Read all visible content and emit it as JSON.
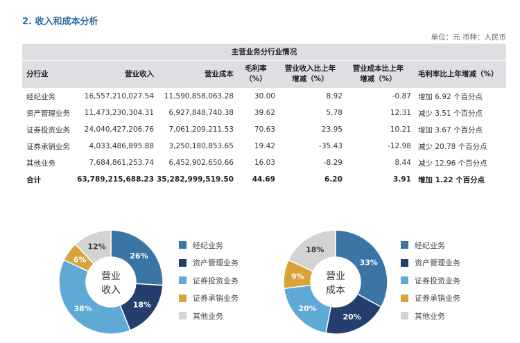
{
  "section_title": "2. 收入和成本分析",
  "unit_line": "单位：元  币种：人民币",
  "table": {
    "title": "主营业务分行业情况",
    "headers": [
      "分行业",
      "营业收入",
      "营业成本",
      "毛利率\n（%）",
      "营业收入比上年\n增减（%）",
      "营业成本比上年\n增减（%）",
      "毛利率比上年增减（%）"
    ],
    "rows": [
      [
        "经纪业务",
        "16,557,210,027.54",
        "11,590,858,063.28",
        "30.00",
        "8.92",
        "-0.87",
        "增加 6.92 个百分点"
      ],
      [
        "资产管理业务",
        "11,473,230,304.31",
        "6,927,848,740.38",
        "39.62",
        "5.78",
        "12.31",
        "减少 3.51 个百分点"
      ],
      [
        "证券投资业务",
        "24,040,427,206.76",
        "7,061,209,211.53",
        "70.63",
        "23.95",
        "10.21",
        "增加 3.67 个百分点"
      ],
      [
        "证券承销业务",
        "4,033,486,895.88",
        "3,250,180,853.65",
        "19.42",
        "-35.43",
        "-12.98",
        "减少 20.78 个百分点"
      ],
      [
        "其他业务",
        "7,684,861,253.74",
        "6,452,902,650.66",
        "16.03",
        "-8.29",
        "8.44",
        "减少 12.96 个百分点"
      ]
    ],
    "total": [
      "合计",
      "63,789,215,688.23",
      "35,282,999,519.50",
      "44.69",
      "6.20",
      "3.91",
      "增加 1.22 个百分点"
    ]
  },
  "colors": [
    "#3b75a6",
    "#243f6e",
    "#5ea9d6",
    "#d9a23a",
    "#d3d3d3"
  ],
  "chart_data": [
    {
      "type": "pie",
      "title": "营业收入",
      "categories": [
        "经纪业务",
        "资产管理业务",
        "证券投资业务",
        "证券承销业务",
        "其他业务"
      ],
      "values": [
        26,
        18,
        38,
        6,
        12
      ],
      "labels": [
        "26%",
        "18%",
        "38%",
        "6%",
        "12%"
      ],
      "legend": "right"
    },
    {
      "type": "pie",
      "title": "营业成本",
      "categories": [
        "经纪业务",
        "资产管理业务",
        "证券投资业务",
        "证券承销业务",
        "其他业务"
      ],
      "values": [
        33,
        20,
        20,
        9,
        18
      ],
      "labels": [
        "33%",
        "20%",
        "20%",
        "9%",
        "18%"
      ],
      "legend": "right"
    }
  ]
}
